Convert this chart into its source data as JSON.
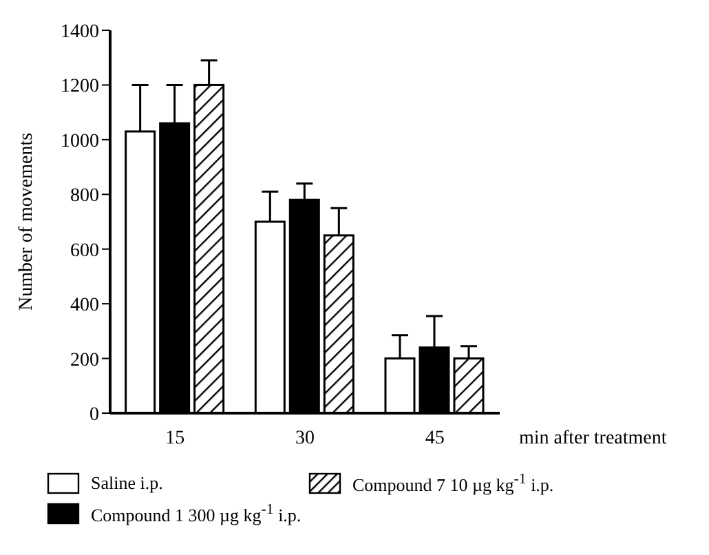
{
  "chart_data": {
    "type": "bar",
    "ylabel": "Number of movements",
    "xlabel": "min after treatment",
    "categories": [
      "15",
      "30",
      "45"
    ],
    "series": [
      {
        "name": "Saline i.p.",
        "color": "#ffffff",
        "values": [
          1030,
          700,
          200
        ],
        "errors": [
          [
            1030,
            1200
          ],
          [
            700,
            810
          ],
          [
            200,
            285
          ]
        ]
      },
      {
        "name": "Compound 1 300 µg kg$^{-1}$ i.p.",
        "color": "#000000",
        "values": [
          1060,
          780,
          240
        ],
        "errors": [
          [
            1060,
            1200
          ],
          [
            780,
            840
          ],
          [
            240,
            355
          ]
        ]
      },
      {
        "name": "Compound 7 10 µg kg$^{-1}$ i.p.",
        "color": "#000000",
        "values": [
          1200,
          650,
          200
        ],
        "errors": [
          [
            1200,
            1290
          ],
          [
            650,
            750
          ],
          [
            200,
            245
          ]
        ]
      }
    ],
    "ylim": [
      0,
      1400
    ],
    "yticks": [
      0,
      200,
      400,
      600,
      800,
      1000,
      1200,
      1400
    ],
    "grid": false,
    "legend": "bottom"
  }
}
